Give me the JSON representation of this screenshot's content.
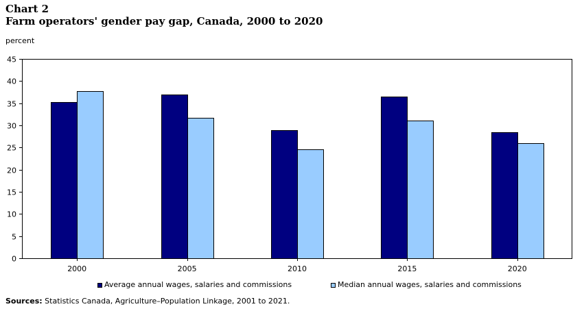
{
  "chart_number": "Chart 2",
  "title": "Farm operators' gender pay gap, Canada, 2000 to 2020",
  "source": {
    "label": "Sources:",
    "text": " Statistics Canada, Agriculture–Population Linkage, 2001 to 2021."
  },
  "colors": {
    "average": "#000080",
    "median": "#99ccff",
    "axis": "#000000"
  },
  "chart_data": {
    "type": "bar",
    "ylabel": "percent",
    "xlabel": "",
    "ylim": [
      0,
      45
    ],
    "yticks": [
      0,
      5,
      10,
      15,
      20,
      25,
      30,
      35,
      40,
      45
    ],
    "grid": false,
    "legend_position": "bottom",
    "categories": [
      "2000",
      "2005",
      "2010",
      "2015",
      "2020"
    ],
    "series": [
      {
        "name": "Average annual wages, salaries and commissions",
        "color": "#000080",
        "values": [
          35.2,
          37.0,
          28.9,
          36.5,
          28.5
        ]
      },
      {
        "name": "Median annual wages, salaries and commissions",
        "color": "#99ccff",
        "values": [
          37.8,
          31.7,
          24.6,
          31.1,
          26.0
        ]
      }
    ]
  }
}
